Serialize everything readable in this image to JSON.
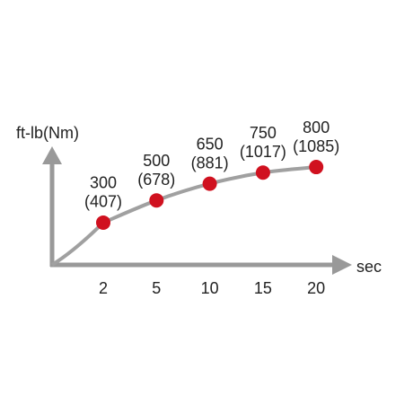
{
  "chart_data": {
    "type": "line",
    "x_label": "sec",
    "y_label": "ft-lb(Nm)",
    "categories": [
      "2",
      "5",
      "10",
      "15",
      "20"
    ],
    "series": [
      {
        "color": "#d0111f",
        "values": [
          300,
          500,
          650,
          750,
          800
        ]
      },
      {
        "values": [
          407,
          678,
          881,
          1017,
          1085
        ],
        "value_labels": [
          "(407)",
          "(678)",
          "(881)",
          "(1017)",
          "(1085)"
        ]
      }
    ],
    "line_color": "#a0a0a0",
    "axis_color": "#999999",
    "ylim": [
      -80,
      970
    ]
  }
}
